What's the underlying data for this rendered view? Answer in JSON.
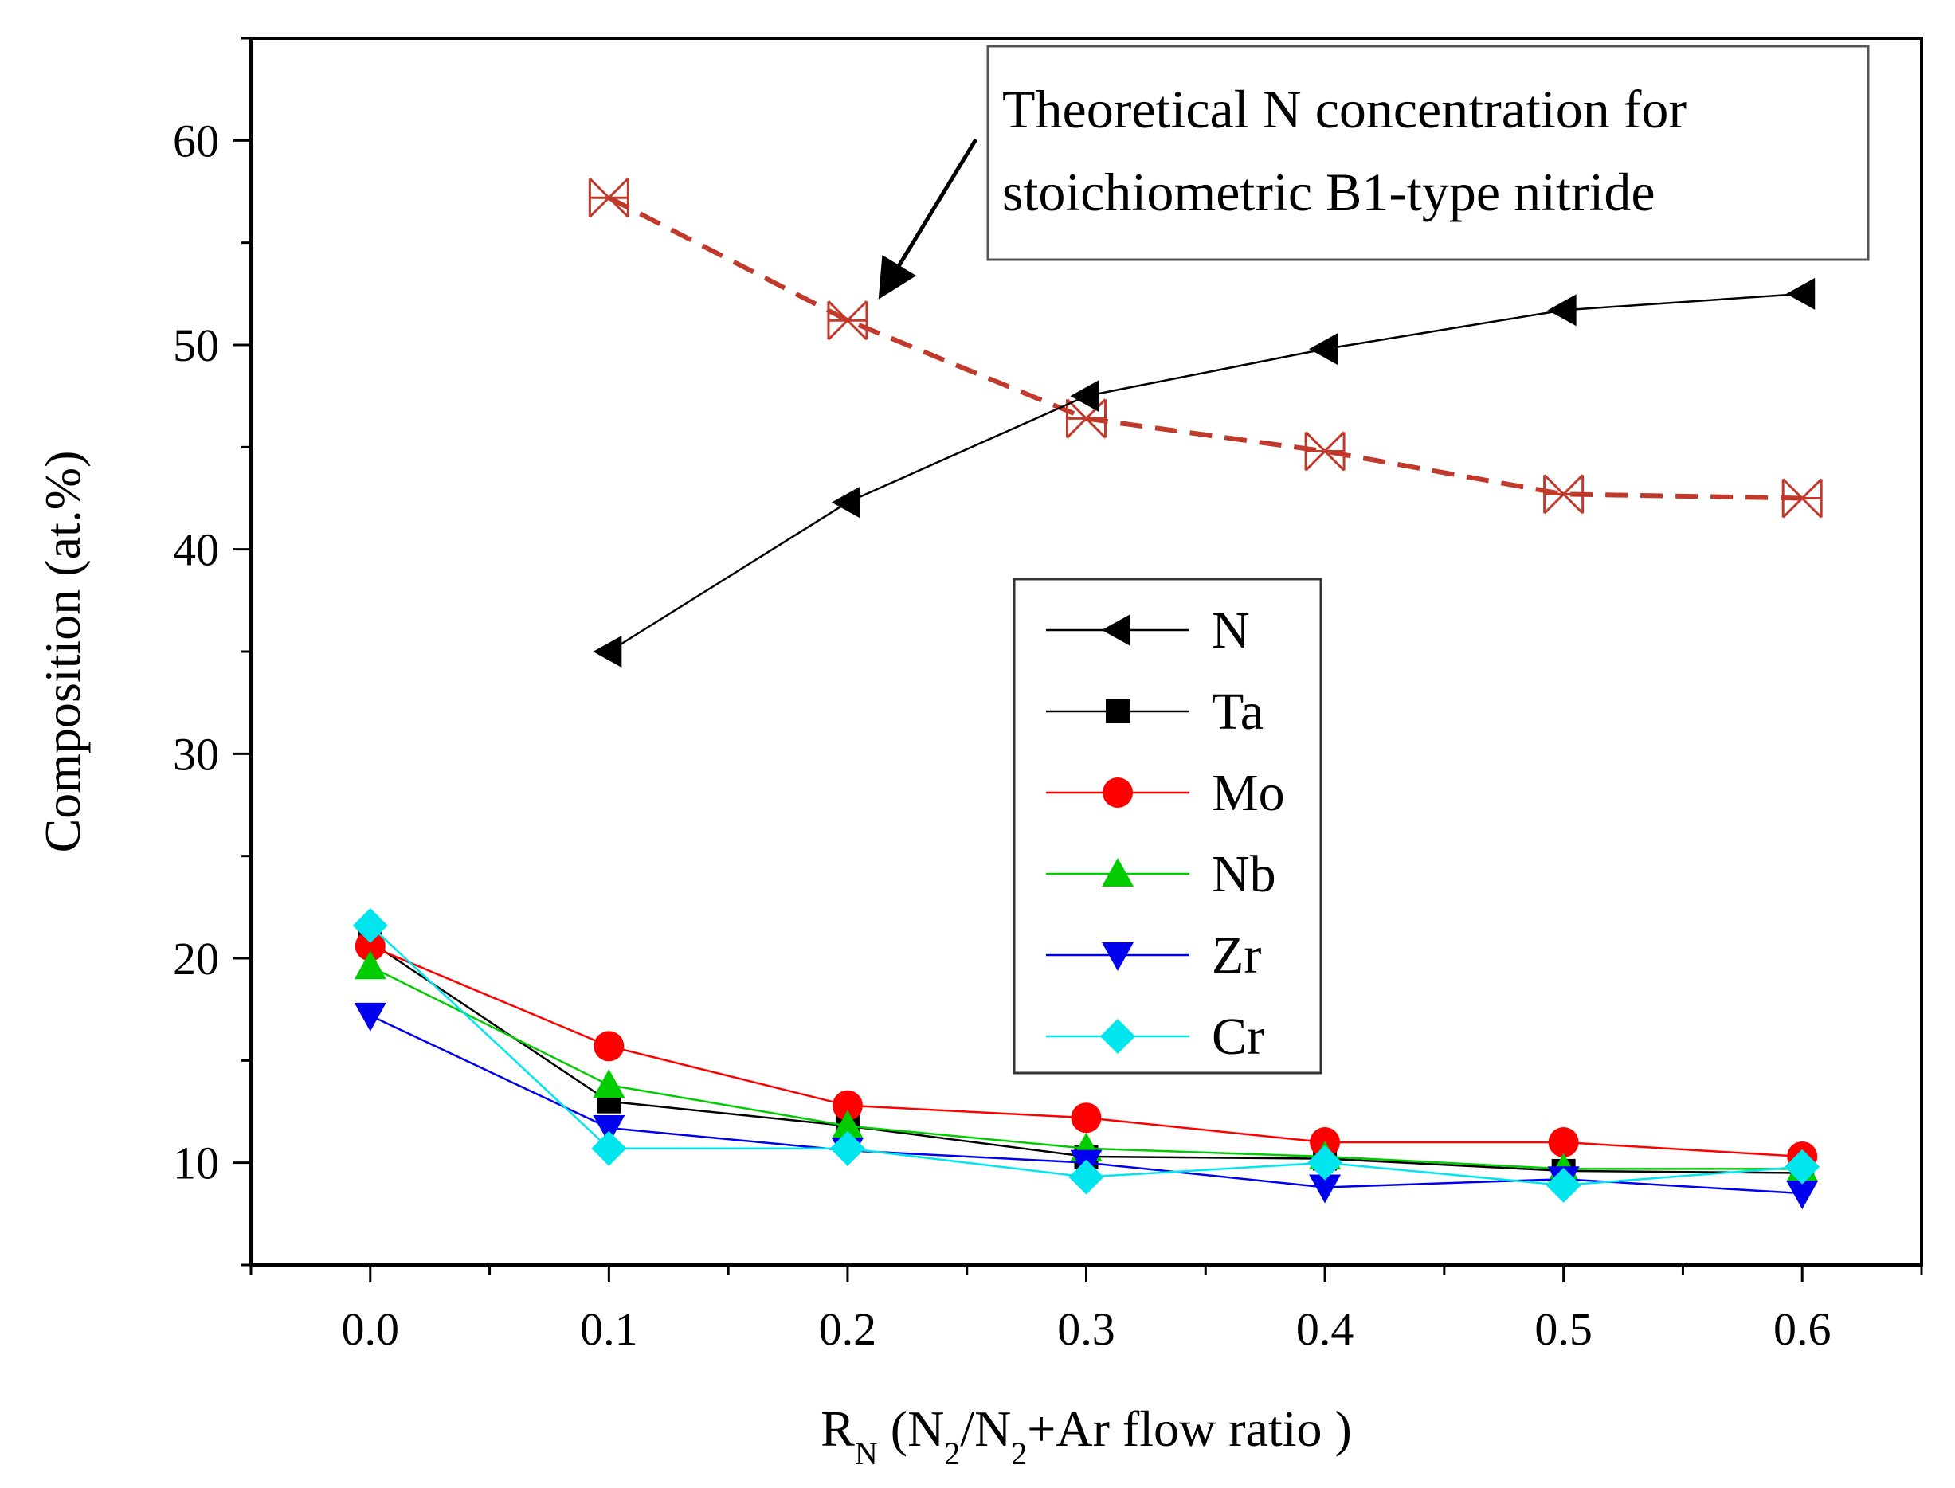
{
  "chart_data": {
    "type": "line",
    "xlabel": {
      "main": "R",
      "sub": "N",
      "rest": [
        {
          "t": " (N",
          "s": ""
        },
        {
          "t": "2",
          "s": "sub"
        },
        {
          "t": "/N",
          "s": ""
        },
        {
          "t": "2",
          "s": "sub"
        },
        {
          "t": "+Ar flow ratio )",
          "s": ""
        }
      ]
    },
    "ylabel": "Composition (at.%)",
    "xlim": [
      -0.05,
      0.65
    ],
    "ylim": [
      5,
      65
    ],
    "xticks": [
      0.0,
      0.1,
      0.2,
      0.3,
      0.4,
      0.5,
      0.6
    ],
    "xtick_labels": [
      "0.0",
      "0.1",
      "0.2",
      "0.3",
      "0.4",
      "0.5",
      "0.6"
    ],
    "yticks": [
      10,
      20,
      30,
      40,
      50,
      60
    ],
    "ytick_labels": [
      "10",
      "20",
      "30",
      "40",
      "50",
      "60"
    ],
    "series": [
      {
        "name": "N",
        "color": "#000000",
        "marker": "triangle-left",
        "x": [
          0.1,
          0.2,
          0.3,
          0.4,
          0.5,
          0.6
        ],
        "values": [
          35.0,
          42.3,
          47.5,
          49.8,
          51.7,
          52.5
        ]
      },
      {
        "name": "Ta",
        "color": "#000000",
        "marker": "square",
        "x": [
          0.0,
          0.1,
          0.2,
          0.3,
          0.4,
          0.5,
          0.6
        ],
        "values": [
          20.8,
          13.0,
          11.8,
          10.3,
          10.2,
          9.6,
          9.5
        ]
      },
      {
        "name": "Mo",
        "color": "#ff0000",
        "marker": "circle",
        "x": [
          0.0,
          0.1,
          0.2,
          0.3,
          0.4,
          0.5,
          0.6
        ],
        "values": [
          20.6,
          15.7,
          12.8,
          12.2,
          11.0,
          11.0,
          10.3
        ]
      },
      {
        "name": "Nb",
        "color": "#00cc00",
        "marker": "triangle-up",
        "x": [
          0.0,
          0.1,
          0.2,
          0.3,
          0.4,
          0.5,
          0.6
        ],
        "values": [
          19.6,
          13.8,
          11.8,
          10.7,
          10.3,
          9.7,
          9.7
        ]
      },
      {
        "name": "Zr",
        "color": "#0000ee",
        "marker": "triangle-down",
        "x": [
          0.0,
          0.1,
          0.2,
          0.3,
          0.4,
          0.5,
          0.6
        ],
        "values": [
          17.2,
          11.7,
          10.6,
          10.0,
          8.8,
          9.2,
          8.5
        ]
      },
      {
        "name": "Cr",
        "color": "#00e5ee",
        "marker": "diamond",
        "x": [
          0.0,
          0.1,
          0.2,
          0.3,
          0.4,
          0.5,
          0.6
        ],
        "values": [
          21.6,
          10.7,
          10.7,
          9.3,
          10.0,
          8.9,
          9.8
        ]
      }
    ],
    "theoretical": {
      "name": "Theoretical N concentration",
      "color": "#c0392b",
      "marker": "crossed-box",
      "x": [
        0.1,
        0.2,
        0.3,
        0.4,
        0.5,
        0.6
      ],
      "values": [
        57.2,
        51.2,
        46.4,
        44.8,
        42.7,
        42.5
      ]
    },
    "annotation": {
      "lines": [
        "Theoretical N concentration for",
        "stoichiometric B1-type nitride"
      ],
      "arrow_target": {
        "x": 0.2,
        "y": 51.2
      }
    },
    "legend": {
      "position": "center-right"
    }
  }
}
